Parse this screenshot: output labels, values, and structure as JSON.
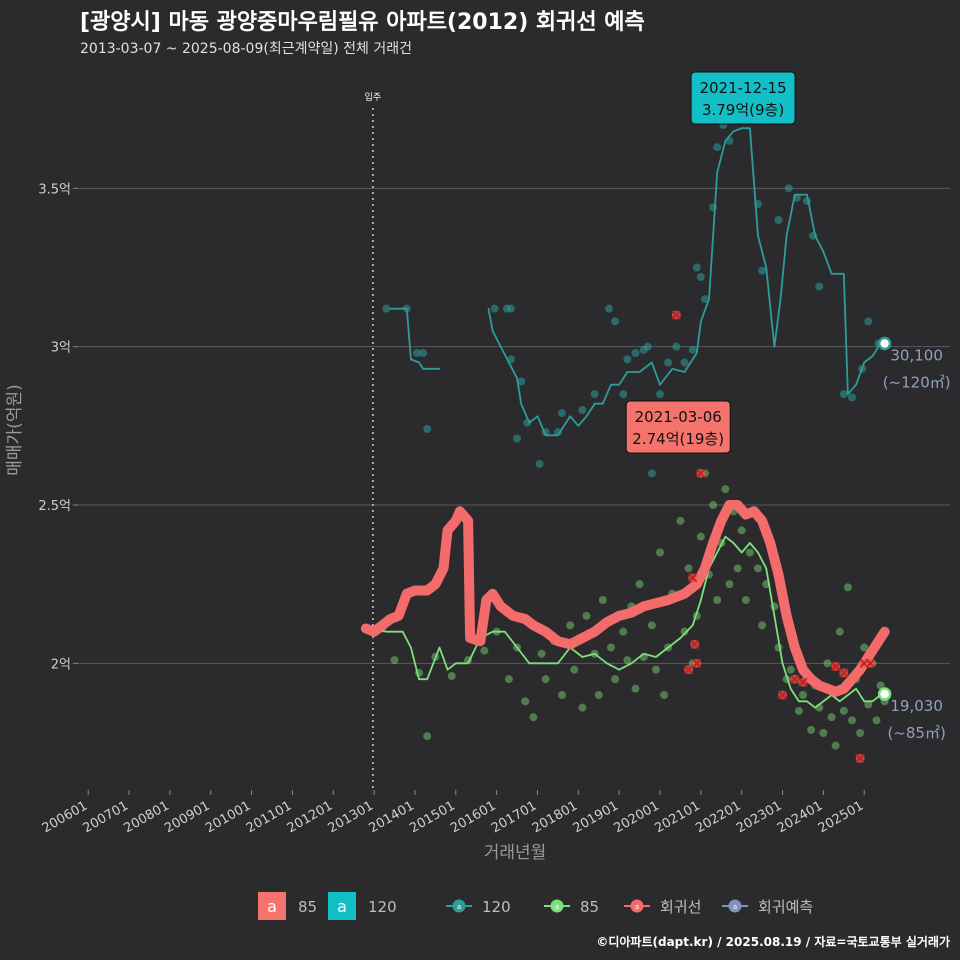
{
  "title": "[광양시] 마동 광양중마우림필유 아파트(2012) 회귀선 예측",
  "subtitle": "2013-03-07 ~ 2025-08-09(최근계약일) 전체 거래건",
  "credit": "©디아파트(dapt.kr) / 2025.08.19 / 자료=국토교통부 실거래가",
  "colors": {
    "background": "#2b2b2d",
    "grid": "#5a5a5c",
    "s120": "#2e9c9a",
    "s85": "#7ee07a",
    "regression": "#f46b6b",
    "forecast": "#7f93c0",
    "callout85": "#f4736c",
    "callout120": "#13bfc6"
  },
  "chart_data": {
    "type": "line",
    "xlabel": "거래년월",
    "ylabel": "매매가(억원)",
    "x_ticks": [
      "200601",
      "200701",
      "200801",
      "200901",
      "201001",
      "201101",
      "201201",
      "201301",
      "201401",
      "201501",
      "201601",
      "201701",
      "201801",
      "201901",
      "202001",
      "202101",
      "202201",
      "202301",
      "202401",
      "202501"
    ],
    "y_ticks": [
      {
        "value": 2.0,
        "label": "2억"
      },
      {
        "value": 2.5,
        "label": "2.5억"
      },
      {
        "value": 3.0,
        "label": "3억"
      },
      {
        "value": 3.5,
        "label": "3.5억"
      }
    ],
    "xlim": [
      2005.75,
      2027.1
    ],
    "ylim": [
      1.6,
      3.88
    ],
    "marker_line": {
      "x": 2012.97,
      "label": "입주"
    },
    "series": [
      {
        "name": "120",
        "color": "#2e9c9a",
        "points": [
          [
            2013.4,
            3.12
          ],
          [
            2013.8,
            3.12
          ],
          [
            2013.9,
            2.96
          ],
          [
            2014.1,
            2.95
          ],
          [
            2014.2,
            2.93
          ],
          [
            2014.6,
            2.93
          ],
          [
            2015.8,
            3.12
          ],
          [
            2015.9,
            3.05
          ],
          [
            2016.1,
            3.0
          ],
          [
            2016.3,
            2.95
          ],
          [
            2016.5,
            2.9
          ],
          [
            2016.6,
            2.82
          ],
          [
            2016.8,
            2.76
          ],
          [
            2017.0,
            2.78
          ],
          [
            2017.2,
            2.72
          ],
          [
            2017.5,
            2.72
          ],
          [
            2017.8,
            2.78
          ],
          [
            2018.0,
            2.75
          ],
          [
            2018.2,
            2.78
          ],
          [
            2018.4,
            2.82
          ],
          [
            2018.6,
            2.82
          ],
          [
            2018.8,
            2.88
          ],
          [
            2019.0,
            2.88
          ],
          [
            2019.2,
            2.92
          ],
          [
            2019.5,
            2.92
          ],
          [
            2019.8,
            2.95
          ],
          [
            2020.0,
            2.88
          ],
          [
            2020.3,
            2.93
          ],
          [
            2020.6,
            2.92
          ],
          [
            2020.9,
            2.98
          ],
          [
            2021.0,
            3.08
          ],
          [
            2021.2,
            3.15
          ],
          [
            2021.4,
            3.55
          ],
          [
            2021.6,
            3.65
          ],
          [
            2021.8,
            3.68
          ],
          [
            2022.0,
            3.69
          ],
          [
            2022.2,
            3.69
          ],
          [
            2022.4,
            3.35
          ],
          [
            2022.6,
            3.25
          ],
          [
            2022.8,
            3.0
          ],
          [
            2022.95,
            3.15
          ],
          [
            2023.1,
            3.35
          ],
          [
            2023.3,
            3.48
          ],
          [
            2023.6,
            3.48
          ],
          [
            2023.8,
            3.35
          ],
          [
            2024.0,
            3.3
          ],
          [
            2024.2,
            3.23
          ],
          [
            2024.5,
            3.23
          ],
          [
            2024.6,
            2.85
          ],
          [
            2024.8,
            2.88
          ],
          [
            2025.0,
            2.95
          ],
          [
            2025.2,
            2.97
          ],
          [
            2025.4,
            3.01
          ]
        ]
      },
      {
        "name": "85",
        "color": "#7ee07a",
        "points": [
          [
            2012.9,
            2.11
          ],
          [
            2013.3,
            2.1
          ],
          [
            2013.7,
            2.1
          ],
          [
            2013.9,
            2.05
          ],
          [
            2014.1,
            1.95
          ],
          [
            2014.3,
            1.95
          ],
          [
            2014.6,
            2.05
          ],
          [
            2014.8,
            1.98
          ],
          [
            2015.0,
            2.0
          ],
          [
            2015.3,
            2.0
          ],
          [
            2015.6,
            2.08
          ],
          [
            2015.9,
            2.1
          ],
          [
            2016.2,
            2.1
          ],
          [
            2016.5,
            2.05
          ],
          [
            2016.8,
            2.0
          ],
          [
            2017.1,
            2.0
          ],
          [
            2017.5,
            2.0
          ],
          [
            2017.8,
            2.05
          ],
          [
            2018.1,
            2.02
          ],
          [
            2018.4,
            2.03
          ],
          [
            2018.7,
            2.0
          ],
          [
            2019.0,
            1.98
          ],
          [
            2019.3,
            2.0
          ],
          [
            2019.6,
            2.03
          ],
          [
            2019.9,
            2.02
          ],
          [
            2020.2,
            2.05
          ],
          [
            2020.5,
            2.08
          ],
          [
            2020.8,
            2.12
          ],
          [
            2021.0,
            2.2
          ],
          [
            2021.2,
            2.3
          ],
          [
            2021.4,
            2.35
          ],
          [
            2021.6,
            2.4
          ],
          [
            2021.8,
            2.38
          ],
          [
            2022.0,
            2.35
          ],
          [
            2022.2,
            2.38
          ],
          [
            2022.4,
            2.35
          ],
          [
            2022.6,
            2.3
          ],
          [
            2022.8,
            2.15
          ],
          [
            2023.0,
            2.0
          ],
          [
            2023.2,
            1.92
          ],
          [
            2023.4,
            1.88
          ],
          [
            2023.6,
            1.88
          ],
          [
            2023.8,
            1.86
          ],
          [
            2024.0,
            1.88
          ],
          [
            2024.2,
            1.9
          ],
          [
            2024.4,
            1.88
          ],
          [
            2024.6,
            1.9
          ],
          [
            2024.8,
            1.92
          ],
          [
            2025.0,
            1.88
          ],
          [
            2025.2,
            1.88
          ],
          [
            2025.4,
            1.9
          ]
        ]
      },
      {
        "name": "회귀선",
        "color": "#f46b6b",
        "points": [
          [
            2012.8,
            2.11
          ],
          [
            2013.0,
            2.1
          ],
          [
            2013.2,
            2.12
          ],
          [
            2013.4,
            2.14
          ],
          [
            2013.6,
            2.15
          ],
          [
            2013.8,
            2.22
          ],
          [
            2014.0,
            2.23
          ],
          [
            2014.3,
            2.23
          ],
          [
            2014.5,
            2.25
          ],
          [
            2014.7,
            2.3
          ],
          [
            2014.8,
            2.42
          ],
          [
            2015.0,
            2.45
          ],
          [
            2015.1,
            2.48
          ],
          [
            2015.3,
            2.45
          ],
          [
            2015.35,
            2.08
          ],
          [
            2015.6,
            2.07
          ],
          [
            2015.75,
            2.2
          ],
          [
            2015.9,
            2.22
          ],
          [
            2016.1,
            2.18
          ],
          [
            2016.4,
            2.15
          ],
          [
            2016.7,
            2.14
          ],
          [
            2016.9,
            2.12
          ],
          [
            2017.2,
            2.1
          ],
          [
            2017.5,
            2.07
          ],
          [
            2017.8,
            2.06
          ],
          [
            2018.1,
            2.08
          ],
          [
            2018.4,
            2.1
          ],
          [
            2018.7,
            2.13
          ],
          [
            2019.0,
            2.15
          ],
          [
            2019.3,
            2.16
          ],
          [
            2019.6,
            2.18
          ],
          [
            2019.9,
            2.19
          ],
          [
            2020.2,
            2.2
          ],
          [
            2020.6,
            2.22
          ],
          [
            2020.9,
            2.25
          ],
          [
            2021.1,
            2.3
          ],
          [
            2021.3,
            2.38
          ],
          [
            2021.5,
            2.45
          ],
          [
            2021.7,
            2.5
          ],
          [
            2021.9,
            2.5
          ],
          [
            2022.1,
            2.47
          ],
          [
            2022.3,
            2.48
          ],
          [
            2022.5,
            2.45
          ],
          [
            2022.7,
            2.38
          ],
          [
            2022.9,
            2.28
          ],
          [
            2023.1,
            2.15
          ],
          [
            2023.3,
            2.05
          ],
          [
            2023.5,
            1.98
          ],
          [
            2023.7,
            1.95
          ],
          [
            2023.9,
            1.93
          ],
          [
            2024.1,
            1.92
          ],
          [
            2024.3,
            1.91
          ],
          [
            2024.5,
            1.92
          ],
          [
            2024.7,
            1.95
          ],
          [
            2024.9,
            1.98
          ],
          [
            2025.1,
            2.02
          ],
          [
            2025.3,
            2.06
          ],
          [
            2025.5,
            2.1
          ]
        ]
      }
    ],
    "scatter_120": [
      [
        2013.3,
        3.12
      ],
      [
        2013.8,
        3.12
      ],
      [
        2014.05,
        2.98
      ],
      [
        2014.2,
        2.98
      ],
      [
        2014.3,
        2.74
      ],
      [
        2015.95,
        3.12
      ],
      [
        2016.25,
        3.12
      ],
      [
        2016.35,
        3.12
      ],
      [
        2016.35,
        2.96
      ],
      [
        2016.6,
        2.89
      ],
      [
        2016.5,
        2.71
      ],
      [
        2016.75,
        2.76
      ],
      [
        2017.05,
        2.63
      ],
      [
        2017.2,
        2.73
      ],
      [
        2017.5,
        2.73
      ],
      [
        2017.6,
        2.79
      ],
      [
        2018.1,
        2.8
      ],
      [
        2018.4,
        2.85
      ],
      [
        2018.75,
        3.12
      ],
      [
        2018.9,
        3.08
      ],
      [
        2019.1,
        2.85
      ],
      [
        2019.2,
        2.96
      ],
      [
        2019.4,
        2.98
      ],
      [
        2019.6,
        2.99
      ],
      [
        2019.7,
        3.0
      ],
      [
        2019.8,
        2.6
      ],
      [
        2020.0,
        2.85
      ],
      [
        2020.2,
        2.95
      ],
      [
        2020.4,
        3.0
      ],
      [
        2020.6,
        2.95
      ],
      [
        2020.8,
        2.99
      ],
      [
        2020.9,
        3.25
      ],
      [
        2021.0,
        3.22
      ],
      [
        2021.1,
        3.15
      ],
      [
        2021.3,
        3.44
      ],
      [
        2021.4,
        3.63
      ],
      [
        2021.55,
        3.7
      ],
      [
        2021.7,
        3.65
      ],
      [
        2021.9,
        3.74
      ],
      [
        2022.1,
        3.79
      ],
      [
        2022.4,
        3.45
      ],
      [
        2022.5,
        3.24
      ],
      [
        2022.9,
        3.4
      ],
      [
        2023.15,
        3.5
      ],
      [
        2023.35,
        3.47
      ],
      [
        2023.6,
        3.46
      ],
      [
        2023.75,
        3.35
      ],
      [
        2023.9,
        3.19
      ],
      [
        2024.5,
        2.85
      ],
      [
        2024.7,
        2.84
      ],
      [
        2024.95,
        2.93
      ],
      [
        2025.1,
        3.08
      ],
      [
        2025.35,
        3.01
      ]
    ],
    "scatter_85": [
      [
        2013.2,
        2.11
      ],
      [
        2013.5,
        2.01
      ],
      [
        2014.1,
        1.97
      ],
      [
        2014.3,
        1.77
      ],
      [
        2014.5,
        2.02
      ],
      [
        2014.9,
        1.96
      ],
      [
        2015.3,
        2.01
      ],
      [
        2015.7,
        2.04
      ],
      [
        2016.0,
        2.1
      ],
      [
        2016.3,
        1.95
      ],
      [
        2016.5,
        2.05
      ],
      [
        2016.7,
        1.88
      ],
      [
        2016.9,
        1.83
      ],
      [
        2017.1,
        2.03
      ],
      [
        2017.2,
        1.95
      ],
      [
        2017.4,
        2.07
      ],
      [
        2017.6,
        1.9
      ],
      [
        2017.8,
        2.12
      ],
      [
        2017.9,
        1.98
      ],
      [
        2018.1,
        1.86
      ],
      [
        2018.2,
        2.15
      ],
      [
        2018.4,
        2.03
      ],
      [
        2018.5,
        1.9
      ],
      [
        2018.6,
        2.2
      ],
      [
        2018.8,
        2.05
      ],
      [
        2018.9,
        1.95
      ],
      [
        2019.1,
        2.1
      ],
      [
        2019.2,
        2.01
      ],
      [
        2019.3,
        2.18
      ],
      [
        2019.4,
        1.92
      ],
      [
        2019.5,
        2.25
      ],
      [
        2019.6,
        2.02
      ],
      [
        2019.8,
        2.12
      ],
      [
        2019.9,
        1.98
      ],
      [
        2020.0,
        2.35
      ],
      [
        2020.1,
        1.9
      ],
      [
        2020.2,
        2.05
      ],
      [
        2020.3,
        2.22
      ],
      [
        2020.5,
        2.45
      ],
      [
        2020.6,
        2.1
      ],
      [
        2020.7,
        2.3
      ],
      [
        2020.8,
        2.0
      ],
      [
        2020.9,
        2.15
      ],
      [
        2021.0,
        2.4
      ],
      [
        2021.1,
        2.6
      ],
      [
        2021.2,
        2.28
      ],
      [
        2021.3,
        2.5
      ],
      [
        2021.4,
        2.2
      ],
      [
        2021.5,
        2.38
      ],
      [
        2021.6,
        2.55
      ],
      [
        2021.7,
        2.25
      ],
      [
        2021.8,
        2.48
      ],
      [
        2021.9,
        2.3
      ],
      [
        2022.0,
        2.42
      ],
      [
        2022.1,
        2.2
      ],
      [
        2022.2,
        2.35
      ],
      [
        2022.4,
        2.3
      ],
      [
        2022.5,
        2.12
      ],
      [
        2022.6,
        2.25
      ],
      [
        2022.8,
        2.18
      ],
      [
        2022.9,
        2.05
      ],
      [
        2023.0,
        2.2
      ],
      [
        2023.1,
        1.95
      ],
      [
        2023.2,
        1.98
      ],
      [
        2023.4,
        1.85
      ],
      [
        2023.5,
        1.9
      ],
      [
        2023.7,
        1.79
      ],
      [
        2023.8,
        1.93
      ],
      [
        2023.9,
        1.86
      ],
      [
        2024.0,
        1.78
      ],
      [
        2024.1,
        2.0
      ],
      [
        2024.2,
        1.83
      ],
      [
        2024.3,
        1.74
      ],
      [
        2024.4,
        2.1
      ],
      [
        2024.5,
        1.85
      ],
      [
        2024.6,
        2.24
      ],
      [
        2024.7,
        1.82
      ],
      [
        2024.8,
        1.95
      ],
      [
        2024.9,
        1.78
      ],
      [
        2025.0,
        2.05
      ],
      [
        2025.1,
        1.87
      ],
      [
        2025.2,
        2.0
      ],
      [
        2025.3,
        1.82
      ],
      [
        2025.4,
        1.93
      ],
      [
        2025.5,
        1.88
      ]
    ],
    "red_x_marks": [
      [
        2020.4,
        3.1
      ],
      [
        2021.0,
        2.6
      ],
      [
        2020.8,
        2.27
      ],
      [
        2020.85,
        2.06
      ],
      [
        2020.9,
        2.0
      ],
      [
        2020.7,
        1.98
      ],
      [
        2023.0,
        1.9
      ],
      [
        2023.3,
        1.95
      ],
      [
        2023.5,
        1.94
      ],
      [
        2024.3,
        1.99
      ],
      [
        2024.5,
        1.97
      ],
      [
        2024.9,
        1.7
      ],
      [
        2025.0,
        2.0
      ],
      [
        2025.15,
        2.0
      ]
    ],
    "annotations": [
      {
        "series": "120",
        "date": "2021-12-15",
        "value": "3.79억(9층)",
        "x": 2021.96,
        "y": 3.79
      },
      {
        "series": "85",
        "date": "2021-03-06",
        "value": "2.74억(19층)",
        "x": 2021.18,
        "y": 2.74
      }
    ],
    "end_labels": [
      {
        "series": "120",
        "value": "30,100",
        "area": "(~120㎡)",
        "x": 2025.5,
        "y": 3.01
      },
      {
        "series": "85",
        "value": "19,030",
        "area": "(~85㎡)",
        "x": 2025.5,
        "y": 1.903
      }
    ],
    "legend": {
      "area_items": [
        {
          "label": "85",
          "color": "#f4736c",
          "glyph": "a"
        },
        {
          "label": "120",
          "color": "#13bfc6",
          "glyph": "a"
        }
      ],
      "line_items": [
        {
          "label": "120",
          "color": "#2e9c9a"
        },
        {
          "label": "85",
          "color": "#7ee07a"
        },
        {
          "label": "회귀선",
          "color": "#f46b6b"
        },
        {
          "label": "회귀예측",
          "color": "#7f93c0"
        }
      ],
      "position": "bottom"
    }
  }
}
